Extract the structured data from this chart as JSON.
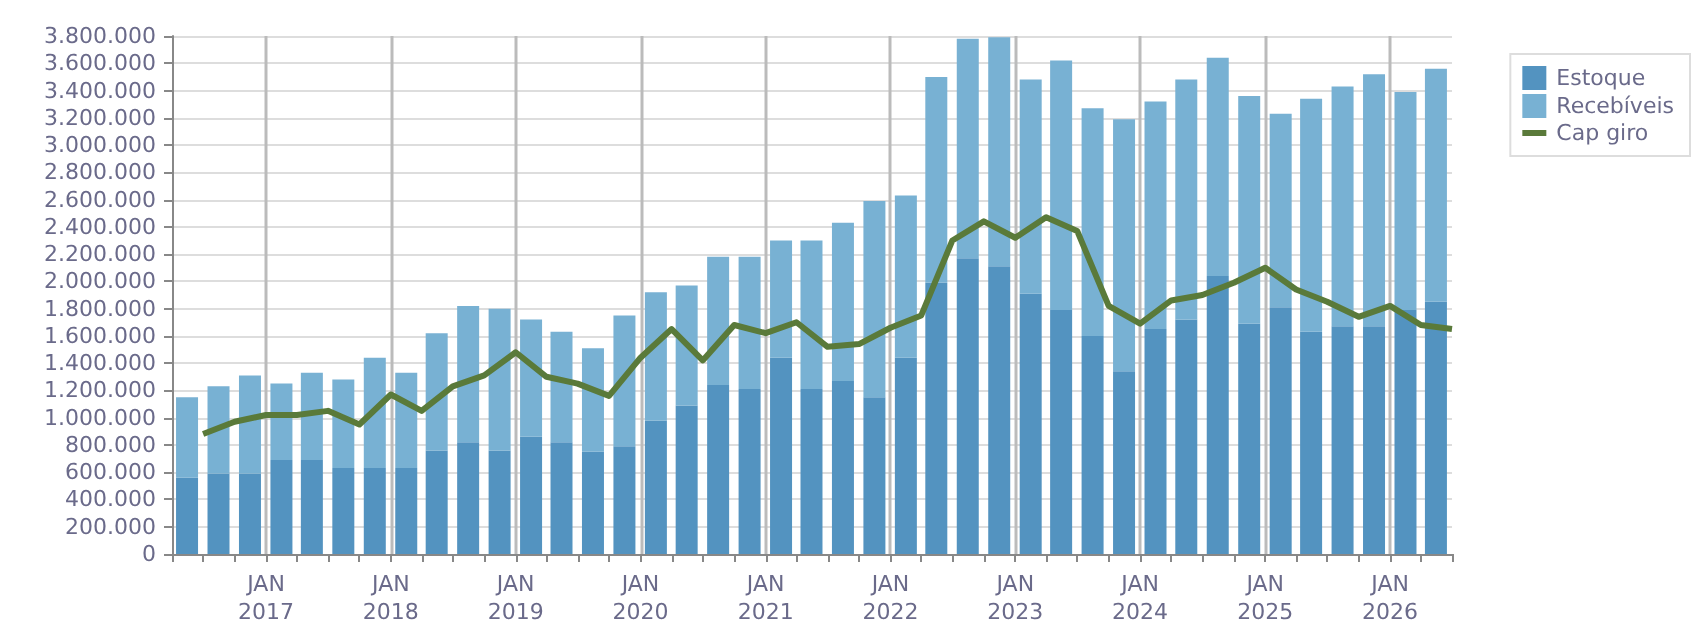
{
  "chart_data": {
    "type": "bar",
    "stacked": true,
    "x": [
      "2016-05-15",
      "2016-08-15",
      "2016-11-15",
      "2017-02-15",
      "2017-05-15",
      "2017-08-15",
      "2017-11-15",
      "2018-02-15",
      "2018-05-15",
      "2018-08-15",
      "2018-11-15",
      "2019-02-15",
      "2019-05-15",
      "2019-08-15",
      "2019-11-15",
      "2020-02-15",
      "2020-05-15",
      "2020-08-15",
      "2020-11-15",
      "2021-02-15",
      "2021-05-15",
      "2021-08-15",
      "2021-11-15",
      "2022-02-15",
      "2022-05-15",
      "2022-08-15",
      "2022-11-15",
      "2023-02-15",
      "2023-05-15",
      "2023-08-15",
      "2023-11-15",
      "2024-02-15",
      "2024-05-15",
      "2024-08-15",
      "2024-11-15",
      "2025-02-15",
      "2025-05-15",
      "2025-08-15",
      "2025-11-15",
      "2026-02-15",
      "2026-05-15"
    ],
    "series": [
      {
        "name": "Estoque",
        "color": "#5393c0",
        "values": [
          560000,
          590000,
          590000,
          690000,
          690000,
          630000,
          630000,
          630000,
          760000,
          820000,
          760000,
          860000,
          820000,
          750000,
          790000,
          980000,
          1090000,
          1240000,
          1210000,
          1440000,
          1210000,
          1270000,
          1150000,
          1440000,
          1990000,
          2170000,
          2110000,
          1910000,
          1790000,
          1600000,
          1340000,
          1650000,
          1720000,
          2040000,
          1690000,
          1810000,
          1630000,
          1670000,
          1670000,
          1790000,
          1850000
        ]
      },
      {
        "name": "Recebíveis",
        "color": "#78b1d3",
        "values": [
          590000,
          640000,
          720000,
          560000,
          640000,
          650000,
          810000,
          700000,
          860000,
          1000000,
          1040000,
          860000,
          810000,
          760000,
          960000,
          940000,
          880000,
          940000,
          970000,
          860000,
          1090000,
          1160000,
          1440000,
          1190000,
          1510000,
          1610000,
          1680000,
          1570000,
          1830000,
          1670000,
          1850000,
          1670000,
          1760000,
          1600000,
          1670000,
          1420000,
          1710000,
          1760000,
          1850000,
          1600000,
          1710000
        ]
      },
      {
        "name": "Cap giro",
        "type": "line",
        "color": "#5a7a3a",
        "x": [
          "2016-07-01",
          "2016-10-01",
          "2017-01-01",
          "2017-04-01",
          "2017-07-01",
          "2017-10-01",
          "2018-01-01",
          "2018-04-01",
          "2018-07-01",
          "2018-10-01",
          "2019-01-01",
          "2019-04-01",
          "2019-07-01",
          "2019-10-01",
          "2020-01-01",
          "2020-04-01",
          "2020-07-01",
          "2020-10-01",
          "2021-01-01",
          "2021-04-01",
          "2021-07-01",
          "2021-10-01",
          "2022-01-01",
          "2022-04-01",
          "2022-07-01",
          "2022-10-01",
          "2023-01-01",
          "2023-04-01",
          "2023-07-01",
          "2023-10-01",
          "2024-01-01",
          "2024-04-01",
          "2024-07-01",
          "2024-10-01",
          "2025-01-01",
          "2025-04-01",
          "2025-07-01",
          "2025-10-01",
          "2026-01-01",
          "2026-04-01",
          "2026-07-01"
        ],
        "values": [
          880000,
          970000,
          1020000,
          1020000,
          1050000,
          950000,
          1170000,
          1050000,
          1230000,
          1310000,
          1480000,
          1300000,
          1250000,
          1160000,
          1440000,
          1650000,
          1420000,
          1680000,
          1620000,
          1700000,
          1520000,
          1540000,
          1660000,
          1750000,
          2300000,
          2440000,
          2320000,
          2470000,
          2370000,
          1820000,
          1690000,
          1860000,
          1900000,
          1990000,
          2100000,
          1940000,
          1850000,
          1740000,
          1820000,
          1680000,
          1650000
        ]
      }
    ],
    "xlim": [
      "2016-04-01",
      "2026-07-01"
    ],
    "xticks": [
      {
        "value": "2016-04-01",
        "label": null
      },
      {
        "value": "2016-07-01",
        "label": null
      },
      {
        "value": "2016-10-01",
        "label": null
      },
      {
        "value": "2017-01-01",
        "label": "JAN\n2017"
      },
      {
        "value": "2017-04-01",
        "label": null
      },
      {
        "value": "2017-07-01",
        "label": null
      },
      {
        "value": "2017-10-01",
        "label": null
      },
      {
        "value": "2018-01-01",
        "label": "JAN\n2018"
      },
      {
        "value": "2018-04-01",
        "label": null
      },
      {
        "value": "2018-07-01",
        "label": null
      },
      {
        "value": "2018-10-01",
        "label": null
      },
      {
        "value": "2019-01-01",
        "label": "JAN\n2019"
      },
      {
        "value": "2019-04-01",
        "label": null
      },
      {
        "value": "2019-07-01",
        "label": null
      },
      {
        "value": "2019-10-01",
        "label": null
      },
      {
        "value": "2020-01-01",
        "label": "JAN\n2020"
      },
      {
        "value": "2020-04-01",
        "label": null
      },
      {
        "value": "2020-07-01",
        "label": null
      },
      {
        "value": "2020-10-01",
        "label": null
      },
      {
        "value": "2021-01-01",
        "label": "JAN\n2021"
      },
      {
        "value": "2021-04-01",
        "label": null
      },
      {
        "value": "2021-07-01",
        "label": null
      },
      {
        "value": "2021-10-01",
        "label": null
      },
      {
        "value": "2022-01-01",
        "label": "JAN\n2022"
      },
      {
        "value": "2022-04-01",
        "label": null
      },
      {
        "value": "2022-07-01",
        "label": null
      },
      {
        "value": "2022-10-01",
        "label": null
      },
      {
        "value": "2023-01-01",
        "label": "JAN\n2023"
      },
      {
        "value": "2023-04-01",
        "label": null
      },
      {
        "value": "2023-07-01",
        "label": null
      },
      {
        "value": "2023-10-01",
        "label": null
      },
      {
        "value": "2024-01-01",
        "label": "JAN\n2024"
      },
      {
        "value": "2024-04-01",
        "label": null
      },
      {
        "value": "2024-07-01",
        "label": null
      },
      {
        "value": "2024-10-01",
        "label": null
      },
      {
        "value": "2025-01-01",
        "label": "JAN\n2025"
      },
      {
        "value": "2025-04-01",
        "label": null
      },
      {
        "value": "2025-07-01",
        "label": null
      },
      {
        "value": "2025-10-01",
        "label": null
      },
      {
        "value": "2026-01-01",
        "label": "JAN\n2026"
      },
      {
        "value": "2026-04-01",
        "label": null
      },
      {
        "value": "2026-07-01",
        "label": null
      }
    ],
    "ylim": [
      0,
      3800000
    ],
    "yticks": [
      {
        "value": 0,
        "label": "0"
      },
      {
        "value": 200000,
        "label": "200.000"
      },
      {
        "value": 400000,
        "label": "400.000"
      },
      {
        "value": 600000,
        "label": "600.000"
      },
      {
        "value": 800000,
        "label": "800.000"
      },
      {
        "value": 1000000,
        "label": "1.000.000"
      },
      {
        "value": 1200000,
        "label": "1.200.000"
      },
      {
        "value": 1400000,
        "label": "1.400.000"
      },
      {
        "value": 1600000,
        "label": "1.600.000"
      },
      {
        "value": 1800000,
        "label": "1.800.000"
      },
      {
        "value": 2000000,
        "label": "2.000.000"
      },
      {
        "value": 2200000,
        "label": "2.200.000"
      },
      {
        "value": 2400000,
        "label": "2.400.000"
      },
      {
        "value": 2600000,
        "label": "2.600.000"
      },
      {
        "value": 2800000,
        "label": "2.800.000"
      },
      {
        "value": 3000000,
        "label": "3.000.000"
      },
      {
        "value": 3200000,
        "label": "3.200.000"
      },
      {
        "value": 3400000,
        "label": "3.400.000"
      },
      {
        "value": 3600000,
        "label": "3.600.000"
      },
      {
        "value": 3800000,
        "label": "3.800.000"
      }
    ],
    "grid": true,
    "legend": "top right",
    "marker": "none",
    "line_style": "solid"
  }
}
